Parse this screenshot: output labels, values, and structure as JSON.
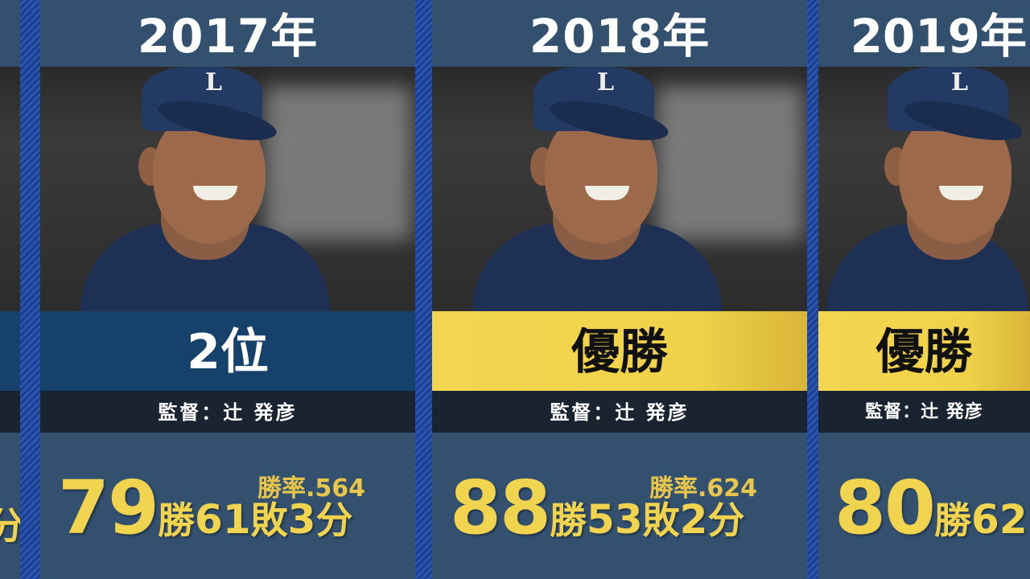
{
  "cards": [
    {
      "year": "2017年",
      "rank": "2位",
      "rank_style": "blue",
      "manager": "監督：辻 発彦",
      "win_rate": "勝率.564",
      "wins": "79",
      "wins_unit": "勝",
      "losses": "61",
      "losses_unit": "敗",
      "ties": "3",
      "ties_unit": "分"
    },
    {
      "year": "2018年",
      "rank": "優勝",
      "rank_style": "gold",
      "manager": "監督：辻 発彦",
      "win_rate": "勝率.624",
      "wins": "88",
      "wins_unit": "勝",
      "losses": "53",
      "losses_unit": "敗",
      "ties": "2",
      "ties_unit": "分"
    },
    {
      "year": "2019年",
      "rank": "優勝",
      "rank_style": "gold",
      "manager": "監督：辻 発彦",
      "wins": "80",
      "wins_unit": "勝",
      "losses": "62"
    }
  ],
  "partial_left": {
    "ties_unit": "分"
  },
  "colors": {
    "gold": "#f0d34f",
    "navy_rank": "#15416a",
    "card_bg": "#33506f",
    "manager_bar": "#1a2330"
  }
}
